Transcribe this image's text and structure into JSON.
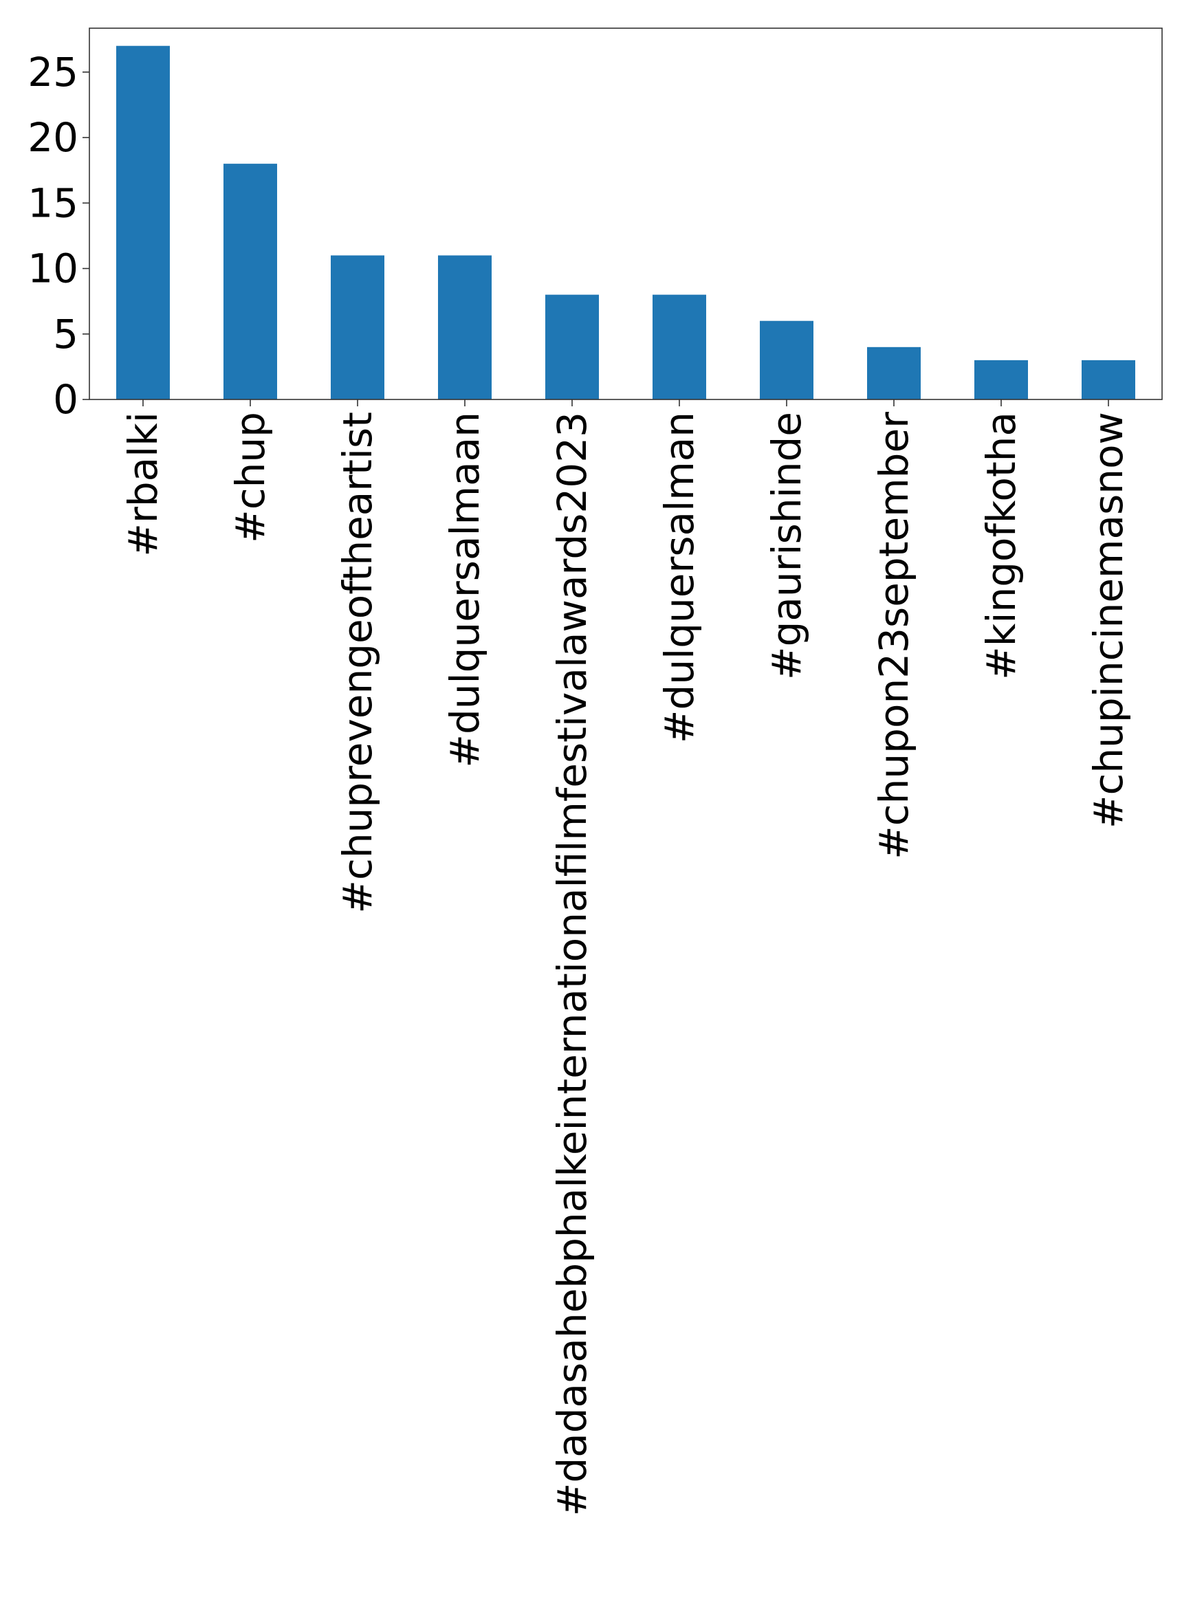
{
  "chart_data": {
    "type": "bar",
    "title": "",
    "xlabel": "",
    "ylabel": "",
    "categories": [
      "#rbalki",
      "#chup",
      "#chuprevengeoftheartist",
      "#dulquersalmaan",
      "#dadasahebphalkeinternationalfilmfestivalawards2023",
      "#dulquersalman",
      "#gaurishinde",
      "#chupon23september",
      "#kingofkotha",
      "#chupincinemasnow"
    ],
    "values": [
      27,
      18,
      11,
      11,
      8,
      8,
      6,
      4,
      3,
      3
    ],
    "ylim": [
      0,
      28.35
    ],
    "yticks": [
      0,
      5,
      10,
      15,
      20,
      25
    ],
    "ytick_labels": [
      "0",
      "5",
      "10",
      "15",
      "20",
      "25"
    ],
    "bar_color": "#1f77b4",
    "grid": false,
    "legend": "none"
  }
}
